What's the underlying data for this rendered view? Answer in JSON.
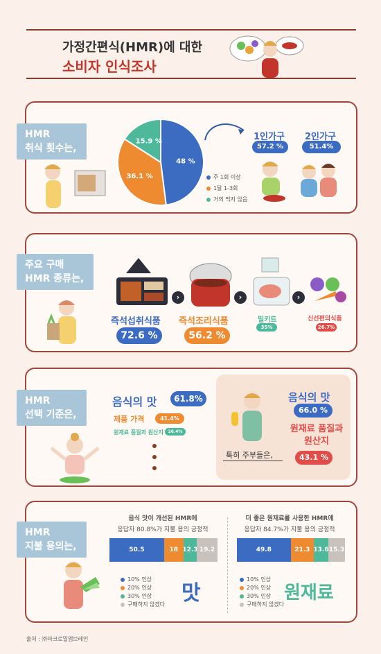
{
  "header": {
    "title_line1": "가정간편식(HMR)에 대한",
    "title_line2": "소비자 인식조사"
  },
  "section1": {
    "tag": [
      "HMR",
      "취식 횟수는,"
    ],
    "hh1_label": "1인가구",
    "hh1_value": "57.2 %",
    "hh2_label": "2인가구",
    "hh2_value": "51.4%"
  },
  "section2": {
    "tag": [
      "주요 구매",
      "HMR 종류는,"
    ],
    "items": [
      {
        "label": "즉석섭취식품",
        "value": "72.6 %"
      },
      {
        "label": "즉석조리식품",
        "value": "56.2 %"
      },
      {
        "label": "밀키트",
        "value": "35%"
      },
      {
        "label": "신선편의식품",
        "value": "26.7%"
      }
    ]
  },
  "section3": {
    "tag": [
      "HMR",
      "선택 기준은,"
    ],
    "c1_label": "음식의 맛",
    "c1_value": "61.8%",
    "c2_label": "제품 가격",
    "c2_value": "41.4%",
    "c3_label": "원재료 품질과 원산지",
    "c3_value": "26.4%",
    "box_title": "특히 주부들은,",
    "box_c1_label": "음식의 맛",
    "box_c1_value": "66.0 %",
    "box_c2_label_line1": "원재료 품질과",
    "box_c2_label_line2": "원산지",
    "box_c2_value": "43.1 %"
  },
  "section4": {
    "tag": [
      "HMR",
      "지불 용의는,"
    ],
    "left_caption1": "음식 맛이 개선된 HMR에",
    "left_caption2": "응답자 80.8%가 지불 용의 긍정적",
    "right_caption1": "더 좋은 원재료를 사용한 HMR에",
    "right_caption2": "응답자 84.7%가 지불 용의 긍정적",
    "left_big": "맛",
    "right_big": "원재료",
    "legend": [
      "10% 인상",
      "20% 인상",
      "30% 인상",
      "구매하지 않겠다"
    ]
  },
  "footer": {
    "source": "출처 : ㈜마크로밀엠브레인"
  },
  "chart_data": [
    {
      "type": "pie",
      "categories": [
        "주 1회 이상",
        "1달 1-3회",
        "거의 먹지 않음"
      ],
      "values": [
        48,
        36.1,
        15.9
      ],
      "labels": [
        "48 %",
        "36.1 %",
        "15.9 %"
      ],
      "colors": [
        "#3c6bc2",
        "#ee8a30",
        "#4db89a"
      ],
      "legend": "right"
    },
    {
      "type": "bar",
      "categories": [
        "10% 인상",
        "20% 인상",
        "30% 인상",
        "구매하지 않겠다"
      ],
      "values": [
        50.5,
        18,
        12.3,
        19.2
      ],
      "labels": [
        "50.5",
        "18",
        "12.3",
        "19.2"
      ],
      "colors": [
        "#3c6bc2",
        "#ee8a30",
        "#4db89a",
        "#c9c1bb"
      ]
    },
    {
      "type": "bar",
      "categories": [
        "10% 인상",
        "20% 인상",
        "30% 인상",
        "구매하지 않겠다"
      ],
      "values": [
        49.8,
        21.3,
        13.6,
        15.3
      ],
      "labels": [
        "49.8",
        "21.3",
        "13.6",
        "15.3"
      ],
      "colors": [
        "#3c6bc2",
        "#ee8a30",
        "#4db89a",
        "#c9c1bb"
      ]
    }
  ]
}
